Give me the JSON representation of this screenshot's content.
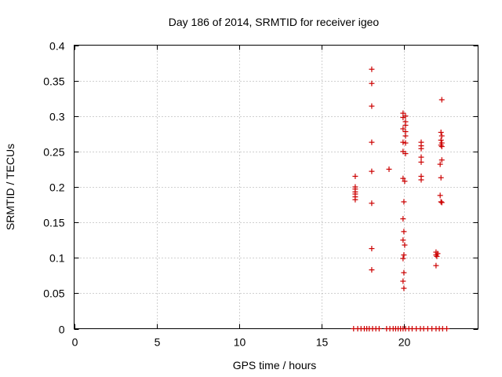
{
  "chart_data": {
    "type": "scatter",
    "title": "Day 186 of 2014, SRMTID for receiver igeo",
    "xlabel": "GPS time / hours",
    "ylabel": "SRMTID / TECUs",
    "xlim": [
      0,
      24.5
    ],
    "ylim": [
      0,
      0.4
    ],
    "xticks": [
      0,
      5,
      10,
      15,
      20
    ],
    "xtick_labels": [
      "0",
      "5",
      "10",
      "15",
      "20"
    ],
    "yticks": [
      0,
      0.05,
      0.1,
      0.15,
      0.2,
      0.25,
      0.3,
      0.35,
      0.4
    ],
    "ytick_labels": [
      "0",
      "0.05",
      "0.1",
      "0.15",
      "0.2",
      "0.25",
      "0.3",
      "0.35",
      "0.4"
    ],
    "grid": true,
    "marker": "plus",
    "color": "#cc0000",
    "series": [
      {
        "name": "SRMTID",
        "points": [
          [
            17.05,
            0.215
          ],
          [
            17.05,
            0.2
          ],
          [
            17.05,
            0.197
          ],
          [
            17.05,
            0.193
          ],
          [
            17.05,
            0.19
          ],
          [
            17.05,
            0.186
          ],
          [
            17.05,
            0.182
          ],
          [
            18.05,
            0.366
          ],
          [
            18.05,
            0.346
          ],
          [
            18.05,
            0.314
          ],
          [
            18.05,
            0.263
          ],
          [
            18.05,
            0.222
          ],
          [
            18.05,
            0.177
          ],
          [
            18.05,
            0.113
          ],
          [
            18.05,
            0.083
          ],
          [
            19.1,
            0.225
          ],
          [
            19.95,
            0.304
          ],
          [
            20.1,
            0.3
          ],
          [
            19.95,
            0.298
          ],
          [
            20.1,
            0.292
          ],
          [
            20.1,
            0.287
          ],
          [
            19.95,
            0.282
          ],
          [
            20.1,
            0.278
          ],
          [
            20.1,
            0.272
          ],
          [
            19.95,
            0.263
          ],
          [
            20.1,
            0.262
          ],
          [
            19.95,
            0.25
          ],
          [
            20.1,
            0.247
          ],
          [
            19.95,
            0.212
          ],
          [
            20.05,
            0.208
          ],
          [
            20.0,
            0.179
          ],
          [
            19.95,
            0.155
          ],
          [
            20.0,
            0.137
          ],
          [
            19.95,
            0.125
          ],
          [
            20.05,
            0.118
          ],
          [
            20.0,
            0.104
          ],
          [
            19.95,
            0.099
          ],
          [
            20.0,
            0.079
          ],
          [
            19.95,
            0.067
          ],
          [
            20.0,
            0.057
          ],
          [
            21.05,
            0.263
          ],
          [
            21.05,
            0.258
          ],
          [
            21.05,
            0.254
          ],
          [
            21.05,
            0.242
          ],
          [
            21.05,
            0.235
          ],
          [
            21.05,
            0.215
          ],
          [
            21.05,
            0.21
          ],
          [
            21.95,
            0.108
          ],
          [
            22.05,
            0.106
          ],
          [
            21.95,
            0.104
          ],
          [
            22.0,
            0.102
          ],
          [
            21.95,
            0.089
          ],
          [
            22.3,
            0.323
          ],
          [
            22.25,
            0.277
          ],
          [
            22.3,
            0.272
          ],
          [
            22.25,
            0.266
          ],
          [
            22.3,
            0.262
          ],
          [
            22.25,
            0.259
          ],
          [
            22.3,
            0.257
          ],
          [
            22.3,
            0.238
          ],
          [
            22.2,
            0.232
          ],
          [
            22.25,
            0.213
          ],
          [
            22.2,
            0.188
          ],
          [
            22.25,
            0.179
          ],
          [
            22.3,
            0.178
          ],
          [
            16.95,
            0
          ],
          [
            17.2,
            0
          ],
          [
            17.4,
            0
          ],
          [
            17.6,
            0
          ],
          [
            17.75,
            0
          ],
          [
            17.9,
            0
          ],
          [
            18.1,
            0
          ],
          [
            18.3,
            0
          ],
          [
            18.5,
            0
          ],
          [
            18.95,
            0
          ],
          [
            19.15,
            0
          ],
          [
            19.35,
            0
          ],
          [
            19.5,
            0
          ],
          [
            19.65,
            0
          ],
          [
            19.8,
            0
          ],
          [
            19.95,
            0
          ],
          [
            20.1,
            0
          ],
          [
            20.3,
            0
          ],
          [
            20.5,
            0
          ],
          [
            20.75,
            0
          ],
          [
            21.0,
            0
          ],
          [
            21.2,
            0
          ],
          [
            21.45,
            0
          ],
          [
            21.7,
            0
          ],
          [
            21.95,
            0
          ],
          [
            22.15,
            0
          ],
          [
            22.35,
            0
          ],
          [
            22.6,
            0
          ]
        ]
      }
    ]
  }
}
